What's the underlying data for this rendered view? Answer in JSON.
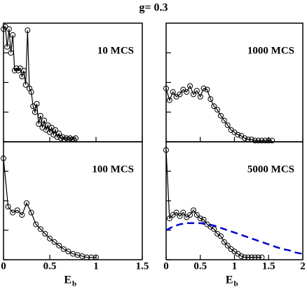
{
  "title": "g= 0.3",
  "chart_data": [
    {
      "type": "line",
      "label": "10 MCS",
      "xlim": [
        0,
        1.5
      ],
      "ylim": [
        0,
        1
      ],
      "xticks": [
        0,
        0.5,
        1,
        1.5
      ],
      "yticks": [
        0,
        0.25,
        0.5,
        0.75
      ],
      "show_xticklabels": false,
      "series": [
        {
          "color": "#000000",
          "markers": true,
          "dashed": false,
          "x": [
            0,
            0.02,
            0.04,
            0.06,
            0.08,
            0.1,
            0.12,
            0.14,
            0.16,
            0.18,
            0.2,
            0.22,
            0.24,
            0.26,
            0.28,
            0.3,
            0.32,
            0.34,
            0.36,
            0.38,
            0.4,
            0.42,
            0.44,
            0.46,
            0.48,
            0.5,
            0.52,
            0.54,
            0.56,
            0.58,
            0.6,
            0.62,
            0.64,
            0.66,
            0.68,
            0.7,
            0.72,
            0.74,
            0.76,
            0.78
          ],
          "values": [
            0.95,
            0.97,
            0.8,
            0.95,
            0.75,
            0.9,
            0.6,
            0.62,
            0.6,
            0.62,
            0.55,
            0.6,
            0.48,
            0.94,
            0.45,
            0.42,
            0.3,
            0.25,
            0.32,
            0.15,
            0.22,
            0.12,
            0.18,
            0.1,
            0.14,
            0.08,
            0.12,
            0.06,
            0.1,
            0.04,
            0.07,
            0.03,
            0.04,
            0.02,
            0.03,
            0.02,
            0.03,
            0.02,
            0.02,
            0.03
          ]
        }
      ]
    },
    {
      "type": "line",
      "label": "1000 MCS",
      "xlim": [
        0,
        2
      ],
      "ylim": [
        0,
        1
      ],
      "xticks": [
        0,
        0.5,
        1,
        1.5,
        2
      ],
      "yticks": [
        0,
        0.25,
        0.5,
        0.75
      ],
      "show_xticklabels": false,
      "series": [
        {
          "color": "#000000",
          "markers": true,
          "dashed": false,
          "x": [
            0,
            0.05,
            0.1,
            0.15,
            0.2,
            0.25,
            0.3,
            0.35,
            0.4,
            0.45,
            0.5,
            0.55,
            0.6,
            0.65,
            0.7,
            0.75,
            0.8,
            0.85,
            0.9,
            0.95,
            1,
            1.05,
            1.1,
            1.15,
            1.2,
            1.25,
            1.3,
            1.35,
            1.4,
            1.45,
            1.5,
            1.55
          ],
          "values": [
            0.45,
            0.35,
            0.42,
            0.38,
            0.4,
            0.44,
            0.42,
            0.47,
            0.4,
            0.43,
            0.38,
            0.45,
            0.44,
            0.36,
            0.3,
            0.27,
            0.22,
            0.18,
            0.14,
            0.1,
            0.08,
            0.06,
            0.05,
            0.03,
            0.02,
            0.02,
            0.01,
            0.01,
            0.01,
            0.01,
            0.01,
            0.01
          ]
        }
      ]
    },
    {
      "type": "line",
      "label": "100 MCS",
      "xlabel": "E",
      "xlabel_subscript": "b",
      "xlim": [
        0,
        1.5
      ],
      "ylim": [
        0,
        1
      ],
      "xticks": [
        0,
        0.5,
        1,
        1.5
      ],
      "yticks": [
        0,
        0.25,
        0.5,
        0.75
      ],
      "show_xticklabels": true,
      "series": [
        {
          "color": "#000000",
          "markers": true,
          "dashed": false,
          "x": [
            0,
            0.05,
            0.1,
            0.15,
            0.2,
            0.25,
            0.3,
            0.35,
            0.4,
            0.45,
            0.5,
            0.55,
            0.6,
            0.65,
            0.7,
            0.75,
            0.8,
            0.85,
            0.9,
            0.95,
            1
          ],
          "values": [
            0.86,
            0.45,
            0.4,
            0.42,
            0.38,
            0.48,
            0.4,
            0.3,
            0.26,
            0.22,
            0.18,
            0.15,
            0.12,
            0.09,
            0.07,
            0.05,
            0.04,
            0.03,
            0.02,
            0.02,
            0.02
          ]
        }
      ]
    },
    {
      "type": "line",
      "label": "5000 MCS",
      "xlabel": "E",
      "xlabel_subscript": "b",
      "xlim": [
        0,
        2
      ],
      "ylim": [
        0,
        1
      ],
      "xticks": [
        0,
        0.5,
        1,
        1.5,
        2
      ],
      "yticks": [
        0,
        0.25,
        0.5,
        0.75
      ],
      "show_xticklabels": true,
      "series": [
        {
          "color": "#000000",
          "markers": true,
          "dashed": false,
          "x": [
            0,
            0.05,
            0.1,
            0.15,
            0.2,
            0.25,
            0.3,
            0.35,
            0.4,
            0.45,
            0.5,
            0.55,
            0.6,
            0.65,
            0.7,
            0.75,
            0.8,
            0.85,
            0.9,
            0.95,
            1,
            1.05,
            1.1,
            1.15,
            1.2,
            1.25,
            1.3,
            1.35,
            1.4
          ],
          "values": [
            0.93,
            0.35,
            0.38,
            0.4,
            0.37,
            0.4,
            0.36,
            0.38,
            0.42,
            0.38,
            0.35,
            0.34,
            0.3,
            0.28,
            0.26,
            0.22,
            0.2,
            0.15,
            0.12,
            0.09,
            0.07,
            0.05,
            0.03,
            0.02,
            0.02,
            0.02,
            0.02,
            0.02,
            0.02
          ]
        },
        {
          "color": "#0000cc",
          "markers": false,
          "dashed": true,
          "x": [
            0,
            0.1,
            0.2,
            0.3,
            0.4,
            0.5,
            0.6,
            0.7,
            0.8,
            0.9,
            1,
            1.1,
            1.2,
            1.3,
            1.4,
            1.5,
            1.6,
            1.7,
            1.8,
            1.9,
            2
          ],
          "values": [
            0.25,
            0.28,
            0.3,
            0.31,
            0.31,
            0.31,
            0.3,
            0.29,
            0.27,
            0.25,
            0.23,
            0.21,
            0.19,
            0.17,
            0.15,
            0.13,
            0.11,
            0.09,
            0.08,
            0.06,
            0.05
          ]
        }
      ]
    }
  ]
}
